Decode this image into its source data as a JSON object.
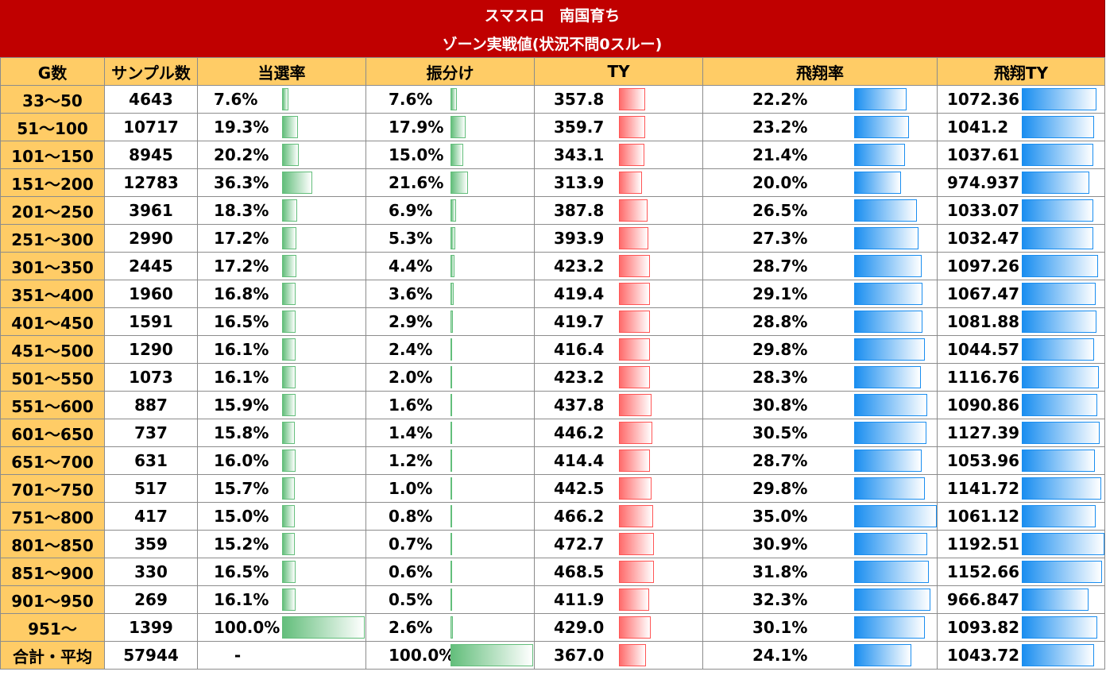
{
  "title": "スマスロ　南国育ち",
  "subtitle": "ゾーン実戦値(状況不問0スルー)",
  "headers": [
    "G数",
    "サンプル数",
    "当選率",
    "振分け",
    "TY",
    "飛翔率",
    "飛翔TY"
  ],
  "bar_colors": {
    "win_rate": "#63be7b",
    "allocation": "#63be7b",
    "ty": "#ff6b6b",
    "flight_rate": "#1a8ef0",
    "flight_ty": "#1a8ef0"
  },
  "rows": [
    {
      "g": "33～50",
      "samples": "4643",
      "win_rate": "7.6%",
      "win_rate_v": 7.6,
      "alloc": "7.6%",
      "alloc_v": 7.6,
      "ty": "357.8",
      "ty_v": 357.8,
      "flight": "22.2%",
      "flight_v": 22.2,
      "fty": "1072.36",
      "fty_v": 1072.36
    },
    {
      "g": "51～100",
      "samples": "10717",
      "win_rate": "19.3%",
      "win_rate_v": 19.3,
      "alloc": "17.9%",
      "alloc_v": 17.9,
      "ty": "359.7",
      "ty_v": 359.7,
      "flight": "23.2%",
      "flight_v": 23.2,
      "fty": "1041.2",
      "fty_v": 1041.2
    },
    {
      "g": "101～150",
      "samples": "8945",
      "win_rate": "20.2%",
      "win_rate_v": 20.2,
      "alloc": "15.0%",
      "alloc_v": 15.0,
      "ty": "343.1",
      "ty_v": 343.1,
      "flight": "21.4%",
      "flight_v": 21.4,
      "fty": "1037.61",
      "fty_v": 1037.61
    },
    {
      "g": "151～200",
      "samples": "12783",
      "win_rate": "36.3%",
      "win_rate_v": 36.3,
      "alloc": "21.6%",
      "alloc_v": 21.6,
      "ty": "313.9",
      "ty_v": 313.9,
      "flight": "20.0%",
      "flight_v": 20.0,
      "fty": "974.937",
      "fty_v": 974.937
    },
    {
      "g": "201～250",
      "samples": "3961",
      "win_rate": "18.3%",
      "win_rate_v": 18.3,
      "alloc": "6.9%",
      "alloc_v": 6.9,
      "ty": "387.8",
      "ty_v": 387.8,
      "flight": "26.5%",
      "flight_v": 26.5,
      "fty": "1033.07",
      "fty_v": 1033.07
    },
    {
      "g": "251～300",
      "samples": "2990",
      "win_rate": "17.2%",
      "win_rate_v": 17.2,
      "alloc": "5.3%",
      "alloc_v": 5.3,
      "ty": "393.9",
      "ty_v": 393.9,
      "flight": "27.3%",
      "flight_v": 27.3,
      "fty": "1032.47",
      "fty_v": 1032.47
    },
    {
      "g": "301～350",
      "samples": "2445",
      "win_rate": "17.2%",
      "win_rate_v": 17.2,
      "alloc": "4.4%",
      "alloc_v": 4.4,
      "ty": "423.2",
      "ty_v": 423.2,
      "flight": "28.7%",
      "flight_v": 28.7,
      "fty": "1097.26",
      "fty_v": 1097.26
    },
    {
      "g": "351～400",
      "samples": "1960",
      "win_rate": "16.8%",
      "win_rate_v": 16.8,
      "alloc": "3.6%",
      "alloc_v": 3.6,
      "ty": "419.4",
      "ty_v": 419.4,
      "flight": "29.1%",
      "flight_v": 29.1,
      "fty": "1067.47",
      "fty_v": 1067.47
    },
    {
      "g": "401～450",
      "samples": "1591",
      "win_rate": "16.5%",
      "win_rate_v": 16.5,
      "alloc": "2.9%",
      "alloc_v": 2.9,
      "ty": "419.7",
      "ty_v": 419.7,
      "flight": "28.8%",
      "flight_v": 28.8,
      "fty": "1081.88",
      "fty_v": 1081.88
    },
    {
      "g": "451～500",
      "samples": "1290",
      "win_rate": "16.1%",
      "win_rate_v": 16.1,
      "alloc": "2.4%",
      "alloc_v": 2.4,
      "ty": "416.4",
      "ty_v": 416.4,
      "flight": "29.8%",
      "flight_v": 29.8,
      "fty": "1044.57",
      "fty_v": 1044.57
    },
    {
      "g": "501～550",
      "samples": "1073",
      "win_rate": "16.1%",
      "win_rate_v": 16.1,
      "alloc": "2.0%",
      "alloc_v": 2.0,
      "ty": "423.2",
      "ty_v": 423.2,
      "flight": "28.3%",
      "flight_v": 28.3,
      "fty": "1116.76",
      "fty_v": 1116.76
    },
    {
      "g": "551～600",
      "samples": "887",
      "win_rate": "15.9%",
      "win_rate_v": 15.9,
      "alloc": "1.6%",
      "alloc_v": 1.6,
      "ty": "437.8",
      "ty_v": 437.8,
      "flight": "30.8%",
      "flight_v": 30.8,
      "fty": "1090.86",
      "fty_v": 1090.86
    },
    {
      "g": "601～650",
      "samples": "737",
      "win_rate": "15.8%",
      "win_rate_v": 15.8,
      "alloc": "1.4%",
      "alloc_v": 1.4,
      "ty": "446.2",
      "ty_v": 446.2,
      "flight": "30.5%",
      "flight_v": 30.5,
      "fty": "1127.39",
      "fty_v": 1127.39
    },
    {
      "g": "651～700",
      "samples": "631",
      "win_rate": "16.0%",
      "win_rate_v": 16.0,
      "alloc": "1.2%",
      "alloc_v": 1.2,
      "ty": "414.4",
      "ty_v": 414.4,
      "flight": "28.7%",
      "flight_v": 28.7,
      "fty": "1053.96",
      "fty_v": 1053.96
    },
    {
      "g": "701～750",
      "samples": "517",
      "win_rate": "15.7%",
      "win_rate_v": 15.7,
      "alloc": "1.0%",
      "alloc_v": 1.0,
      "ty": "442.5",
      "ty_v": 442.5,
      "flight": "29.8%",
      "flight_v": 29.8,
      "fty": "1141.72",
      "fty_v": 1141.72
    },
    {
      "g": "751～800",
      "samples": "417",
      "win_rate": "15.0%",
      "win_rate_v": 15.0,
      "alloc": "0.8%",
      "alloc_v": 0.8,
      "ty": "466.2",
      "ty_v": 466.2,
      "flight": "35.0%",
      "flight_v": 35.0,
      "fty": "1061.12",
      "fty_v": 1061.12
    },
    {
      "g": "801～850",
      "samples": "359",
      "win_rate": "15.2%",
      "win_rate_v": 15.2,
      "alloc": "0.7%",
      "alloc_v": 0.7,
      "ty": "472.7",
      "ty_v": 472.7,
      "flight": "30.9%",
      "flight_v": 30.9,
      "fty": "1192.51",
      "fty_v": 1192.51
    },
    {
      "g": "851～900",
      "samples": "330",
      "win_rate": "16.5%",
      "win_rate_v": 16.5,
      "alloc": "0.6%",
      "alloc_v": 0.6,
      "ty": "468.5",
      "ty_v": 468.5,
      "flight": "31.8%",
      "flight_v": 31.8,
      "fty": "1152.66",
      "fty_v": 1152.66
    },
    {
      "g": "901～950",
      "samples": "269",
      "win_rate": "16.1%",
      "win_rate_v": 16.1,
      "alloc": "0.5%",
      "alloc_v": 0.5,
      "ty": "411.9",
      "ty_v": 411.9,
      "flight": "32.3%",
      "flight_v": 32.3,
      "fty": "966.847",
      "fty_v": 966.847
    },
    {
      "g": "951～",
      "samples": "1399",
      "win_rate": "100.0%",
      "win_rate_v": 100.0,
      "alloc": "2.6%",
      "alloc_v": 2.6,
      "ty": "429.0",
      "ty_v": 429.0,
      "flight": "30.1%",
      "flight_v": 30.1,
      "fty": "1093.82",
      "fty_v": 1093.82
    },
    {
      "g": "合計・平均",
      "samples": "57944",
      "win_rate": "-",
      "win_rate_v": null,
      "alloc": "100.0%",
      "alloc_v": 100.0,
      "ty": "367.0",
      "ty_v": 367.0,
      "flight": "24.1%",
      "flight_v": 24.1,
      "fty": "1043.72",
      "fty_v": 1043.72
    }
  ]
}
